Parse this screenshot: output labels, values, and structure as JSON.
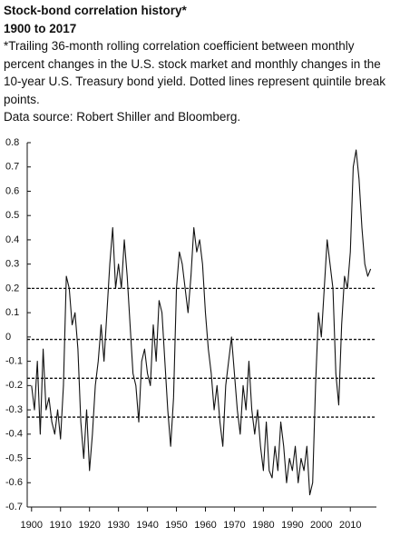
{
  "chart_data": {
    "type": "line",
    "title": "Stock-bond correlation history*",
    "subtitle": "1900 to 2017",
    "note": "*Trailing 36-month rolling correlation coefficient between monthly percent changes in the U.S. stock market and monthly changes in the 10-year U.S. Treasury bond yield. Dotted lines represent quintile break points.",
    "source": "Data source: Robert Shiller and Bloomberg.",
    "x": [
      1900,
      1901,
      1902,
      1903,
      1904,
      1905,
      1906,
      1907,
      1908,
      1909,
      1910,
      1911,
      1912,
      1913,
      1914,
      1915,
      1916,
      1917,
      1918,
      1919,
      1920,
      1921,
      1922,
      1923,
      1924,
      1925,
      1926,
      1927,
      1928,
      1929,
      1930,
      1931,
      1932,
      1933,
      1934,
      1935,
      1936,
      1937,
      1938,
      1939,
      1940,
      1941,
      1942,
      1943,
      1944,
      1945,
      1946,
      1947,
      1948,
      1949,
      1950,
      1951,
      1952,
      1953,
      1954,
      1955,
      1956,
      1957,
      1958,
      1959,
      1960,
      1961,
      1962,
      1963,
      1964,
      1965,
      1966,
      1967,
      1968,
      1969,
      1970,
      1971,
      1972,
      1973,
      1974,
      1975,
      1976,
      1977,
      1978,
      1979,
      1980,
      1981,
      1982,
      1983,
      1984,
      1985,
      1986,
      1987,
      1988,
      1989,
      1990,
      1991,
      1992,
      1993,
      1994,
      1995,
      1996,
      1997,
      1998,
      1999,
      2000,
      2001,
      2002,
      2003,
      2004,
      2005,
      2006,
      2007,
      2008,
      2009,
      2010,
      2011,
      2012,
      2013,
      2014,
      2015,
      2016,
      2017
    ],
    "series": [
      {
        "color": "#111111",
        "values": [
          -0.2,
          -0.3,
          -0.1,
          -0.4,
          -0.05,
          -0.3,
          -0.25,
          -0.35,
          -0.4,
          -0.3,
          -0.42,
          -0.2,
          0.25,
          0.2,
          0.05,
          0.1,
          -0.05,
          -0.35,
          -0.5,
          -0.3,
          -0.55,
          -0.4,
          -0.2,
          -0.1,
          0.05,
          -0.1,
          0.1,
          0.3,
          0.45,
          0.2,
          0.3,
          0.2,
          0.4,
          0.25,
          0.05,
          -0.15,
          -0.2,
          -0.35,
          -0.1,
          -0.05,
          -0.15,
          -0.2,
          0.05,
          -0.1,
          0.15,
          0.1,
          -0.1,
          -0.3,
          -0.45,
          -0.25,
          0.2,
          0.35,
          0.3,
          0.2,
          0.1,
          0.25,
          0.45,
          0.35,
          0.4,
          0.3,
          0.1,
          -0.05,
          -0.15,
          -0.3,
          -0.2,
          -0.35,
          -0.45,
          -0.2,
          -0.1,
          0.0,
          -0.15,
          -0.3,
          -0.4,
          -0.2,
          -0.3,
          -0.1,
          -0.3,
          -0.4,
          -0.3,
          -0.45,
          -0.55,
          -0.35,
          -0.55,
          -0.58,
          -0.45,
          -0.55,
          -0.35,
          -0.45,
          -0.6,
          -0.5,
          -0.55,
          -0.45,
          -0.6,
          -0.5,
          -0.55,
          -0.45,
          -0.65,
          -0.6,
          -0.2,
          0.1,
          0.0,
          0.2,
          0.4,
          0.3,
          0.2,
          -0.15,
          -0.28,
          0.05,
          0.25,
          0.2,
          0.35,
          0.7,
          0.77,
          0.65,
          0.45,
          0.3,
          0.25,
          0.28
        ]
      }
    ],
    "reference_lines": [
      0.2,
      -0.01,
      -0.17,
      -0.33
    ],
    "xlim": [
      1898.5,
      2019
    ],
    "xticks": [
      1900,
      1910,
      1920,
      1930,
      1940,
      1950,
      1960,
      1970,
      1980,
      1990,
      2000,
      2010
    ],
    "ylim": [
      -0.7,
      0.8
    ],
    "yticks": [
      0.8,
      0.7,
      0.6,
      0.5,
      0.4,
      0.3,
      0.2,
      0.1,
      0,
      -0.1,
      -0.2,
      -0.3,
      -0.4,
      -0.5,
      -0.6,
      -0.7
    ]
  }
}
